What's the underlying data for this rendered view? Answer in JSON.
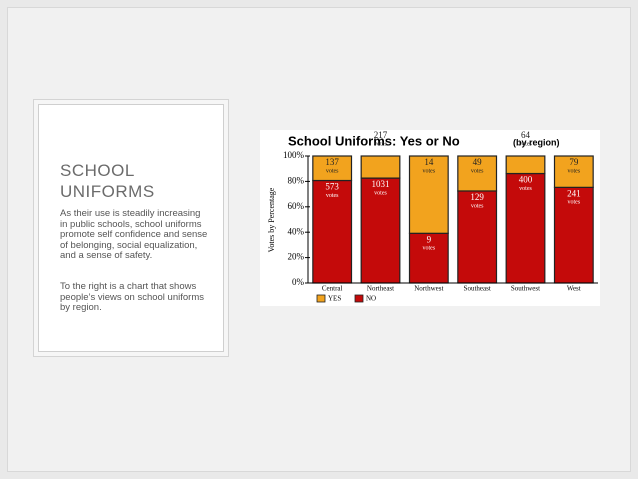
{
  "slide": {
    "heading": "SCHOOL UNIFORMS",
    "paragraphs": [
      "As their use is steadily increasing in public schools, school uniforms promote self confidence and sense of belonging, social equalization, and a sense of safety.",
      "To the right is a chart that shows people’s views on school uniforms by region."
    ]
  },
  "chart_data": {
    "type": "bar",
    "stacking": "percent",
    "title": "School Uniforms: Yes or No",
    "subtitle": "(by region)",
    "y_label": "Votes by Percentage",
    "value_unit": "votes",
    "categories": [
      "Central",
      "Northeast",
      "Northwest",
      "Southeast",
      "Southwest",
      "West"
    ],
    "series": [
      {
        "name": "NO",
        "color": "#c40a0a",
        "values": [
          573,
          1031,
          9,
          129,
          400,
          241
        ]
      },
      {
        "name": "YES",
        "color": "#f2a31e",
        "values": [
          137,
          217,
          14,
          49,
          64,
          79
        ]
      }
    ],
    "ylim": [
      0,
      100
    ],
    "yticks": [
      {
        "value": 0,
        "label": "0%"
      },
      {
        "value": 20,
        "label": "20%"
      },
      {
        "value": 40,
        "label": "40%"
      },
      {
        "value": 60,
        "label": "60%"
      },
      {
        "value": 80,
        "label": "80%"
      },
      {
        "value": 100,
        "label": "100%"
      }
    ]
  }
}
